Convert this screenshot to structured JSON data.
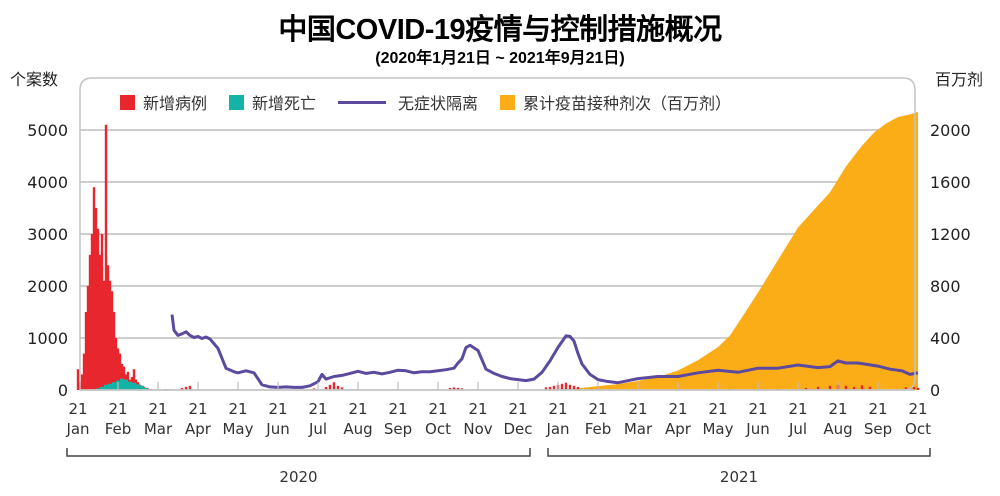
{
  "header": {
    "title": "中国COVID-19疫情与控制措施概况",
    "subtitle": "(2020年1月21日 ~ 2021年9月21日)"
  },
  "chart_data": {
    "type": "combo",
    "title": "中国COVID-19疫情与控制措施概况",
    "subtitle": "(2020年1月21日 ~ 2021年9月21日)",
    "ylabel_left": "个案数",
    "ylabel_right": "百万剂",
    "ylim_left": [
      0,
      5000
    ],
    "ylim_right": [
      0,
      2000
    ],
    "yticks_left": [
      "0",
      "1000",
      "2000",
      "3000",
      "4000",
      "5000"
    ],
    "yticks_right": [
      "0",
      "400",
      "800",
      "1200",
      "1600",
      "2000"
    ],
    "grid": true,
    "legend_position": "top",
    "legend": [
      "新增病例",
      "新增死亡",
      "无症状隔离",
      "累计疫苗接种剂次（百万剂）"
    ],
    "x_ticks": [
      {
        "day": "21",
        "month": "Jan"
      },
      {
        "day": "21",
        "month": "Feb"
      },
      {
        "day": "21",
        "month": "Mar"
      },
      {
        "day": "21",
        "month": "Apr"
      },
      {
        "day": "21",
        "month": "May"
      },
      {
        "day": "21",
        "month": "Jun"
      },
      {
        "day": "21",
        "month": "Jul"
      },
      {
        "day": "21",
        "month": "Aug"
      },
      {
        "day": "21",
        "month": "Sep"
      },
      {
        "day": "21",
        "month": "Oct"
      },
      {
        "day": "21",
        "month": "Nov"
      },
      {
        "day": "21",
        "month": "Dec"
      },
      {
        "day": "21",
        "month": "Jan"
      },
      {
        "day": "21",
        "month": "Feb"
      },
      {
        "day": "21",
        "month": "Mar"
      },
      {
        "day": "21",
        "month": "Apr"
      },
      {
        "day": "21",
        "month": "May"
      },
      {
        "day": "21",
        "month": "Jun"
      },
      {
        "day": "21",
        "month": "Jul"
      },
      {
        "day": "21",
        "month": "Aug"
      },
      {
        "day": "21",
        "month": "Sep"
      },
      {
        "day": "21",
        "month": "Oct"
      }
    ],
    "years": [
      {
        "label": "2020",
        "from_month_index": 0,
        "to_month_index": 11
      },
      {
        "label": "2021",
        "from_month_index": 12,
        "to_month_index": 21
      }
    ],
    "colors": {
      "cases": "#e8262d",
      "deaths": "#14b3a8",
      "asymptomatic": "#5b4a9e",
      "vaccine": "#fbad18"
    },
    "x_unit": "months since 2020-01-21",
    "series": [
      {
        "name": "新增病例",
        "type": "bar",
        "axis": "left",
        "x": [
          0.0,
          0.05,
          0.1,
          0.15,
          0.2,
          0.25,
          0.3,
          0.35,
          0.4,
          0.45,
          0.5,
          0.55,
          0.6,
          0.65,
          0.7,
          0.75,
          0.8,
          0.85,
          0.9,
          0.95,
          1.0,
          1.05,
          1.1,
          1.15,
          1.2,
          1.25,
          1.3,
          1.35,
          1.4,
          1.45,
          1.5,
          1.55,
          1.6,
          1.65,
          1.7,
          1.75,
          1.8,
          1.85,
          1.9,
          2.2,
          2.3,
          2.6,
          2.7,
          2.8,
          5.9,
          6.2,
          6.3,
          6.4,
          6.5,
          6.6,
          9.3,
          9.4,
          9.5,
          9.6,
          11.7,
          11.8,
          11.9,
          12.0,
          12.1,
          12.2,
          12.3,
          12.4,
          12.5,
          16.3,
          16.9,
          17.5,
          18.2,
          18.5,
          18.8,
          19.0,
          19.2,
          19.4,
          19.6,
          19.8,
          20.7,
          20.8,
          20.9,
          21.0
        ],
        "values": [
          400,
          150,
          300,
          700,
          1500,
          2000,
          2600,
          3000,
          3900,
          3500,
          3100,
          2600,
          3000,
          2100,
          5100,
          2400,
          2100,
          1900,
          1500,
          1000,
          800,
          700,
          500,
          450,
          300,
          350,
          200,
          250,
          400,
          200,
          150,
          100,
          80,
          60,
          40,
          30,
          20,
          15,
          10,
          20,
          15,
          40,
          60,
          80,
          30,
          60,
          100,
          150,
          80,
          50,
          40,
          50,
          40,
          30,
          50,
          60,
          80,
          100,
          120,
          140,
          100,
          80,
          60,
          20,
          20,
          20,
          40,
          60,
          80,
          100,
          80,
          60,
          90,
          60,
          50,
          40,
          60,
          40
        ]
      },
      {
        "name": "新增死亡",
        "type": "bar",
        "axis": "left",
        "x": [
          0.5,
          0.6,
          0.7,
          0.8,
          0.9,
          1.0,
          1.1,
          1.2,
          1.3,
          1.4,
          1.5,
          1.6,
          1.7
        ],
        "values": [
          30,
          60,
          100,
          120,
          150,
          180,
          220,
          200,
          160,
          140,
          110,
          80,
          40
        ]
      },
      {
        "name": "无症状隔离",
        "type": "line",
        "axis": "left",
        "x": [
          2.35,
          2.4,
          2.5,
          2.6,
          2.7,
          2.8,
          2.9,
          3.0,
          3.1,
          3.2,
          3.3,
          3.5,
          3.7,
          3.9,
          4.0,
          4.2,
          4.4,
          4.6,
          4.8,
          5.0,
          5.2,
          5.4,
          5.6,
          5.8,
          6.0,
          6.1,
          6.2,
          6.4,
          6.6,
          6.8,
          7.0,
          7.2,
          7.4,
          7.6,
          7.8,
          8.0,
          8.2,
          8.4,
          8.6,
          8.8,
          9.0,
          9.2,
          9.4,
          9.5,
          9.6,
          9.7,
          9.8,
          10.0,
          10.2,
          10.4,
          10.6,
          10.8,
          11.0,
          11.2,
          11.4,
          11.6,
          11.8,
          12.0,
          12.2,
          12.3,
          12.4,
          12.5,
          12.6,
          12.8,
          13.0,
          13.2,
          13.5,
          14.0,
          14.5,
          15.0,
          15.5,
          16.0,
          16.5,
          17.0,
          17.5,
          18.0,
          18.5,
          18.8,
          19.0,
          19.2,
          19.5,
          20.0,
          20.3,
          20.6,
          20.8,
          21.0
        ],
        "values": [
          1450,
          1150,
          1050,
          1080,
          1120,
          1050,
          1010,
          1030,
          990,
          1020,
          980,
          800,
          420,
          350,
          330,
          370,
          330,
          100,
          60,
          50,
          60,
          50,
          50,
          80,
          160,
          300,
          210,
          260,
          280,
          320,
          360,
          320,
          340,
          310,
          340,
          380,
          370,
          330,
          350,
          350,
          370,
          390,
          420,
          520,
          600,
          820,
          860,
          760,
          400,
          320,
          260,
          220,
          200,
          180,
          210,
          340,
          560,
          820,
          1040,
          1030,
          940,
          700,
          500,
          300,
          200,
          170,
          140,
          220,
          260,
          260,
          330,
          380,
          340,
          420,
          420,
          480,
          430,
          450,
          560,
          520,
          520,
          460,
          400,
          370,
          300,
          330
        ]
      },
      {
        "name": "累计疫苗接种剂次（百万剂）",
        "type": "area",
        "axis": "right",
        "x": [
          12.4,
          13.0,
          13.5,
          14.0,
          14.5,
          15.0,
          15.5,
          16.0,
          16.3,
          16.6,
          17.0,
          17.5,
          18.0,
          18.5,
          18.8,
          19.2,
          19.6,
          19.9,
          20.2,
          20.5,
          20.8,
          21.0
        ],
        "values": [
          10,
          30,
          45,
          70,
          100,
          150,
          230,
          330,
          420,
          560,
          750,
          1000,
          1250,
          1420,
          1520,
          1720,
          1880,
          1980,
          2050,
          2100,
          2120,
          2140
        ]
      }
    ]
  }
}
